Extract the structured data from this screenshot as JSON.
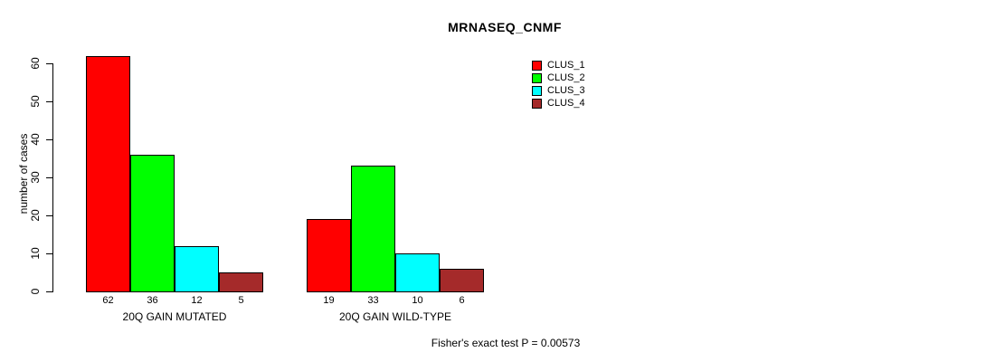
{
  "chart_data": {
    "type": "bar",
    "title": "MRNASEQ_CNMF",
    "xlabel": "",
    "ylabel": "number of cases",
    "ylim": [
      0,
      65
    ],
    "yticks": [
      0,
      10,
      20,
      30,
      40,
      50,
      60
    ],
    "grid": false,
    "categories": [
      "20Q GAIN MUTATED",
      "20Q GAIN WILD-TYPE"
    ],
    "series": [
      {
        "name": "CLUS_1",
        "color": "#ff0000",
        "values": [
          62,
          19
        ]
      },
      {
        "name": "CLUS_2",
        "color": "#00ff00",
        "values": [
          36,
          33
        ]
      },
      {
        "name": "CLUS_3",
        "color": "#00ffff",
        "values": [
          12,
          10
        ]
      },
      {
        "name": "CLUS_4",
        "color": "#a52a2a",
        "values": [
          5,
          6
        ]
      }
    ],
    "bar_value_labels_shown": true,
    "legend_position": "right-of-plot-top",
    "annotation": "Fisher's exact test P = 0.00573"
  }
}
